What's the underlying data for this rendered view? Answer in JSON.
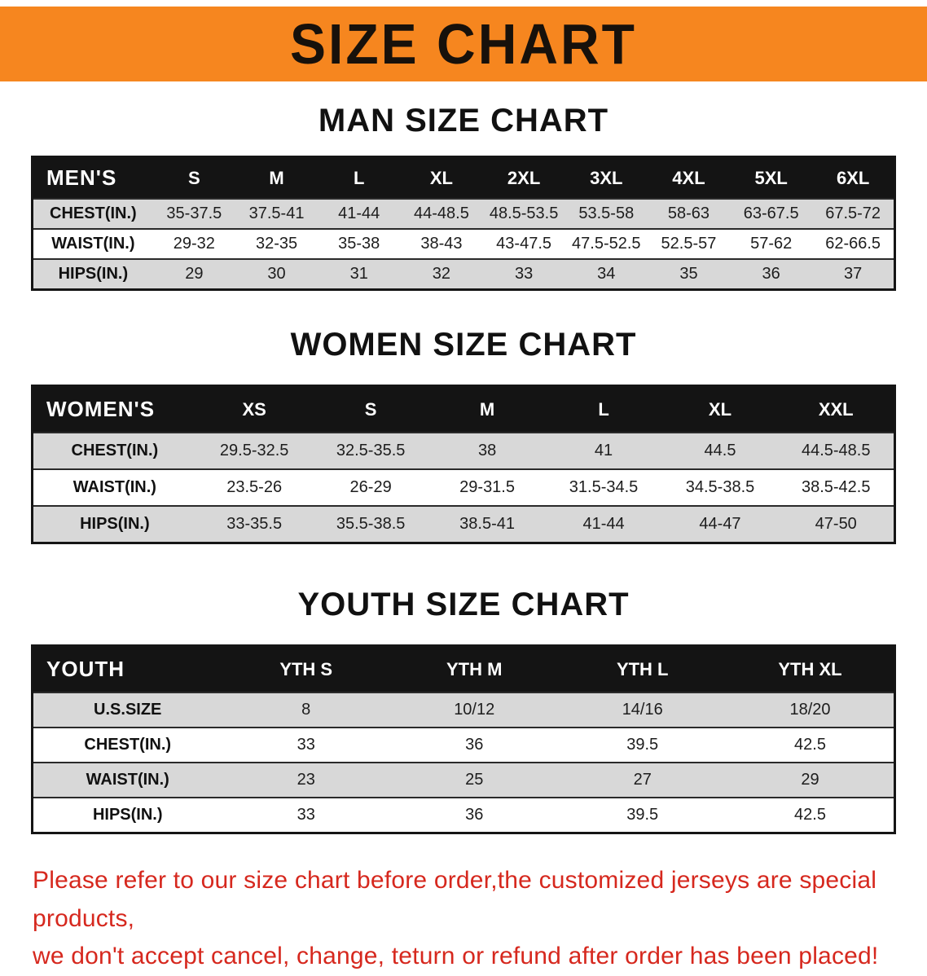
{
  "banner": {
    "title": "SIZE CHART"
  },
  "colors": {
    "banner_orange": "#f6861f",
    "table_header_black": "#141414",
    "row_shade_gray": "#d8d8d8",
    "notice_red": "#d6281e"
  },
  "sections": [
    {
      "id": "men",
      "heading": "MAN SIZE CHART",
      "table": {
        "header": [
          "MEN'S",
          "S",
          "M",
          "L",
          "XL",
          "2XL",
          "3XL",
          "4XL",
          "5XL",
          "6XL"
        ],
        "rows": [
          [
            "CHEST(IN.)",
            "35-37.5",
            "37.5-41",
            "41-44",
            "44-48.5",
            "48.5-53.5",
            "53.5-58",
            "58-63",
            "63-67.5",
            "67.5-72"
          ],
          [
            "WAIST(IN.)",
            "29-32",
            "32-35",
            "35-38",
            "38-43",
            "43-47.5",
            "47.5-52.5",
            "52.5-57",
            "57-62",
            "62-66.5"
          ],
          [
            "HIPS(IN.)",
            "29",
            "30",
            "31",
            "32",
            "33",
            "34",
            "35",
            "36",
            "37"
          ]
        ]
      }
    },
    {
      "id": "women",
      "heading": "WOMEN SIZE CHART",
      "table": {
        "header": [
          "WOMEN'S",
          "XS",
          "S",
          "M",
          "L",
          "XL",
          "XXL"
        ],
        "rows": [
          [
            "CHEST(IN.)",
            "29.5-32.5",
            "32.5-35.5",
            "38",
            "41",
            "44.5",
            "44.5-48.5"
          ],
          [
            "WAIST(IN.)",
            "23.5-26",
            "26-29",
            "29-31.5",
            "31.5-34.5",
            "34.5-38.5",
            "38.5-42.5"
          ],
          [
            "HIPS(IN.)",
            "33-35.5",
            "35.5-38.5",
            "38.5-41",
            "41-44",
            "44-47",
            "47-50"
          ]
        ]
      }
    },
    {
      "id": "youth",
      "heading": "YOUTH SIZE CHART",
      "table": {
        "header": [
          "YOUTH",
          "YTH S",
          "YTH M",
          "YTH L",
          "YTH XL"
        ],
        "rows": [
          [
            "U.S.SIZE",
            "8",
            "10/12",
            "14/16",
            "18/20"
          ],
          [
            "CHEST(IN.)",
            "33",
            "36",
            "39.5",
            "42.5"
          ],
          [
            "WAIST(IN.)",
            "23",
            "25",
            "27",
            "29"
          ],
          [
            "HIPS(IN.)",
            "33",
            "36",
            "39.5",
            "42.5"
          ]
        ]
      }
    }
  ],
  "footer": {
    "line1": "Please refer to our size chart before order,the customized jerseys are special products,",
    "line2": "we don't accept cancel, change, teturn or refund after order has been placed!"
  }
}
